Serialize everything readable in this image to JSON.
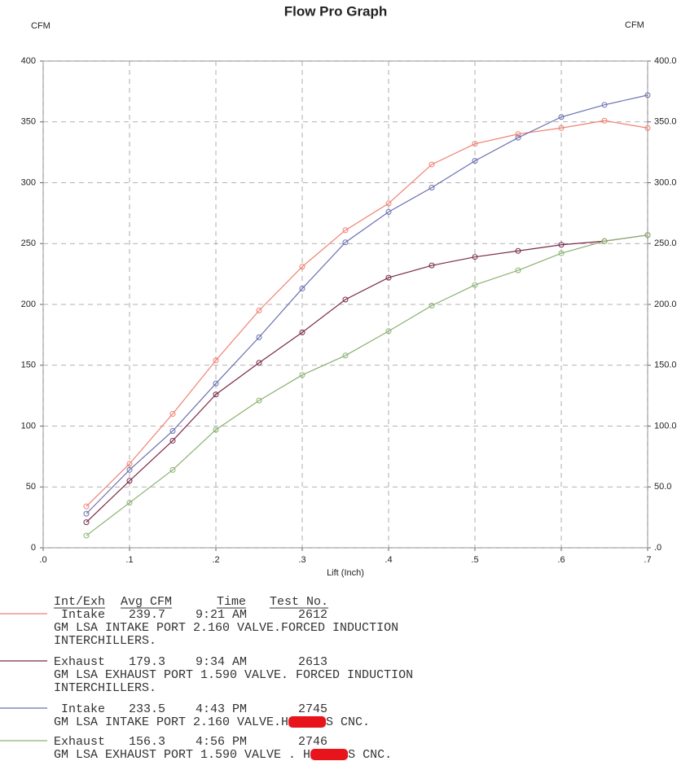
{
  "chart_data": {
    "type": "line",
    "title": "Flow Pro Graph",
    "x_label": "Lift (Inch)",
    "y_label": "CFM",
    "y2_label": "CFM",
    "x": [
      0.05,
      0.1,
      0.15,
      0.2,
      0.25,
      0.3,
      0.35,
      0.4,
      0.45,
      0.5,
      0.55,
      0.6,
      0.65,
      0.7
    ],
    "xlim": [
      0,
      0.7
    ],
    "xticks": [
      {
        "value": 0,
        "label": ".0"
      },
      {
        "value": 0.1,
        "label": ".1"
      },
      {
        "value": 0.2,
        "label": ".2"
      },
      {
        "value": 0.3,
        "label": ".3"
      },
      {
        "value": 0.4,
        "label": ".4"
      },
      {
        "value": 0.5,
        "label": ".5"
      },
      {
        "value": 0.6,
        "label": ".6"
      },
      {
        "value": 0.7,
        "label": ".7"
      }
    ],
    "ylim": [
      0,
      400
    ],
    "yticks": [
      0,
      50,
      100,
      150,
      200,
      250,
      300,
      350,
      400
    ],
    "y2lim": [
      0,
      400
    ],
    "y2ticks": [
      {
        "value": 0,
        "label": ".0"
      },
      {
        "value": 50,
        "label": "50.0"
      },
      {
        "value": 100,
        "label": "100.0"
      },
      {
        "value": 150,
        "label": "150.0"
      },
      {
        "value": 200,
        "label": "200.0"
      },
      {
        "value": 250,
        "label": "250.0"
      },
      {
        "value": 300,
        "label": "300.0"
      },
      {
        "value": 350,
        "label": "350.0"
      },
      {
        "value": 400,
        "label": "400.0"
      }
    ],
    "grid": true,
    "legend_header": {
      "int_exh": "Int/Exh",
      "avg_cfm": "Avg CFM",
      "time": "Time",
      "test_no": "Test No."
    },
    "series": [
      {
        "name": "Intake",
        "color": "#f08070",
        "avg_cfm": 239.7,
        "time": "9:21 AM",
        "test_no": 2612,
        "description": [
          "GM LSA INTAKE PORT 2.160 VALVE.FORCED INDUCTION",
          "INTERCHILLERS."
        ],
        "values": [
          34,
          69,
          110,
          154,
          195,
          231,
          261,
          283,
          315,
          332,
          340,
          345,
          351,
          345
        ]
      },
      {
        "name": "Exhaust",
        "color": "#7a2a4a",
        "avg_cfm": 179.3,
        "time": "9:34 AM",
        "test_no": 2613,
        "description": [
          "GM LSA EXHAUST PORT 1.590 VALVE. FORCED INDUCTION",
          "INTERCHILLERS."
        ],
        "values": [
          21,
          55,
          88,
          126,
          152,
          177,
          204,
          222,
          232,
          239,
          244,
          249,
          252,
          257
        ]
      },
      {
        "name": "Intake",
        "color": "#6a70b0",
        "avg_cfm": 233.5,
        "time": "4:43 PM",
        "test_no": 2745,
        "description": [
          [
            "GM LSA INTAKE PORT 2.160 VALVE.H",
            "S CNC."
          ]
        ],
        "values": [
          28,
          64,
          96,
          135,
          173,
          213,
          251,
          276,
          296,
          318,
          337,
          354,
          364,
          372
        ]
      },
      {
        "name": "Exhaust",
        "color": "#8ab070",
        "avg_cfm": 156.3,
        "time": "4:56 PM",
        "test_no": 2746,
        "description": [
          [
            "GM LSA EXHAUST PORT 1.590 VALVE . H",
            "S CNC."
          ]
        ],
        "values": [
          10,
          37,
          64,
          97,
          121,
          142,
          158,
          178,
          199,
          216,
          228,
          242,
          252,
          257
        ]
      }
    ]
  }
}
